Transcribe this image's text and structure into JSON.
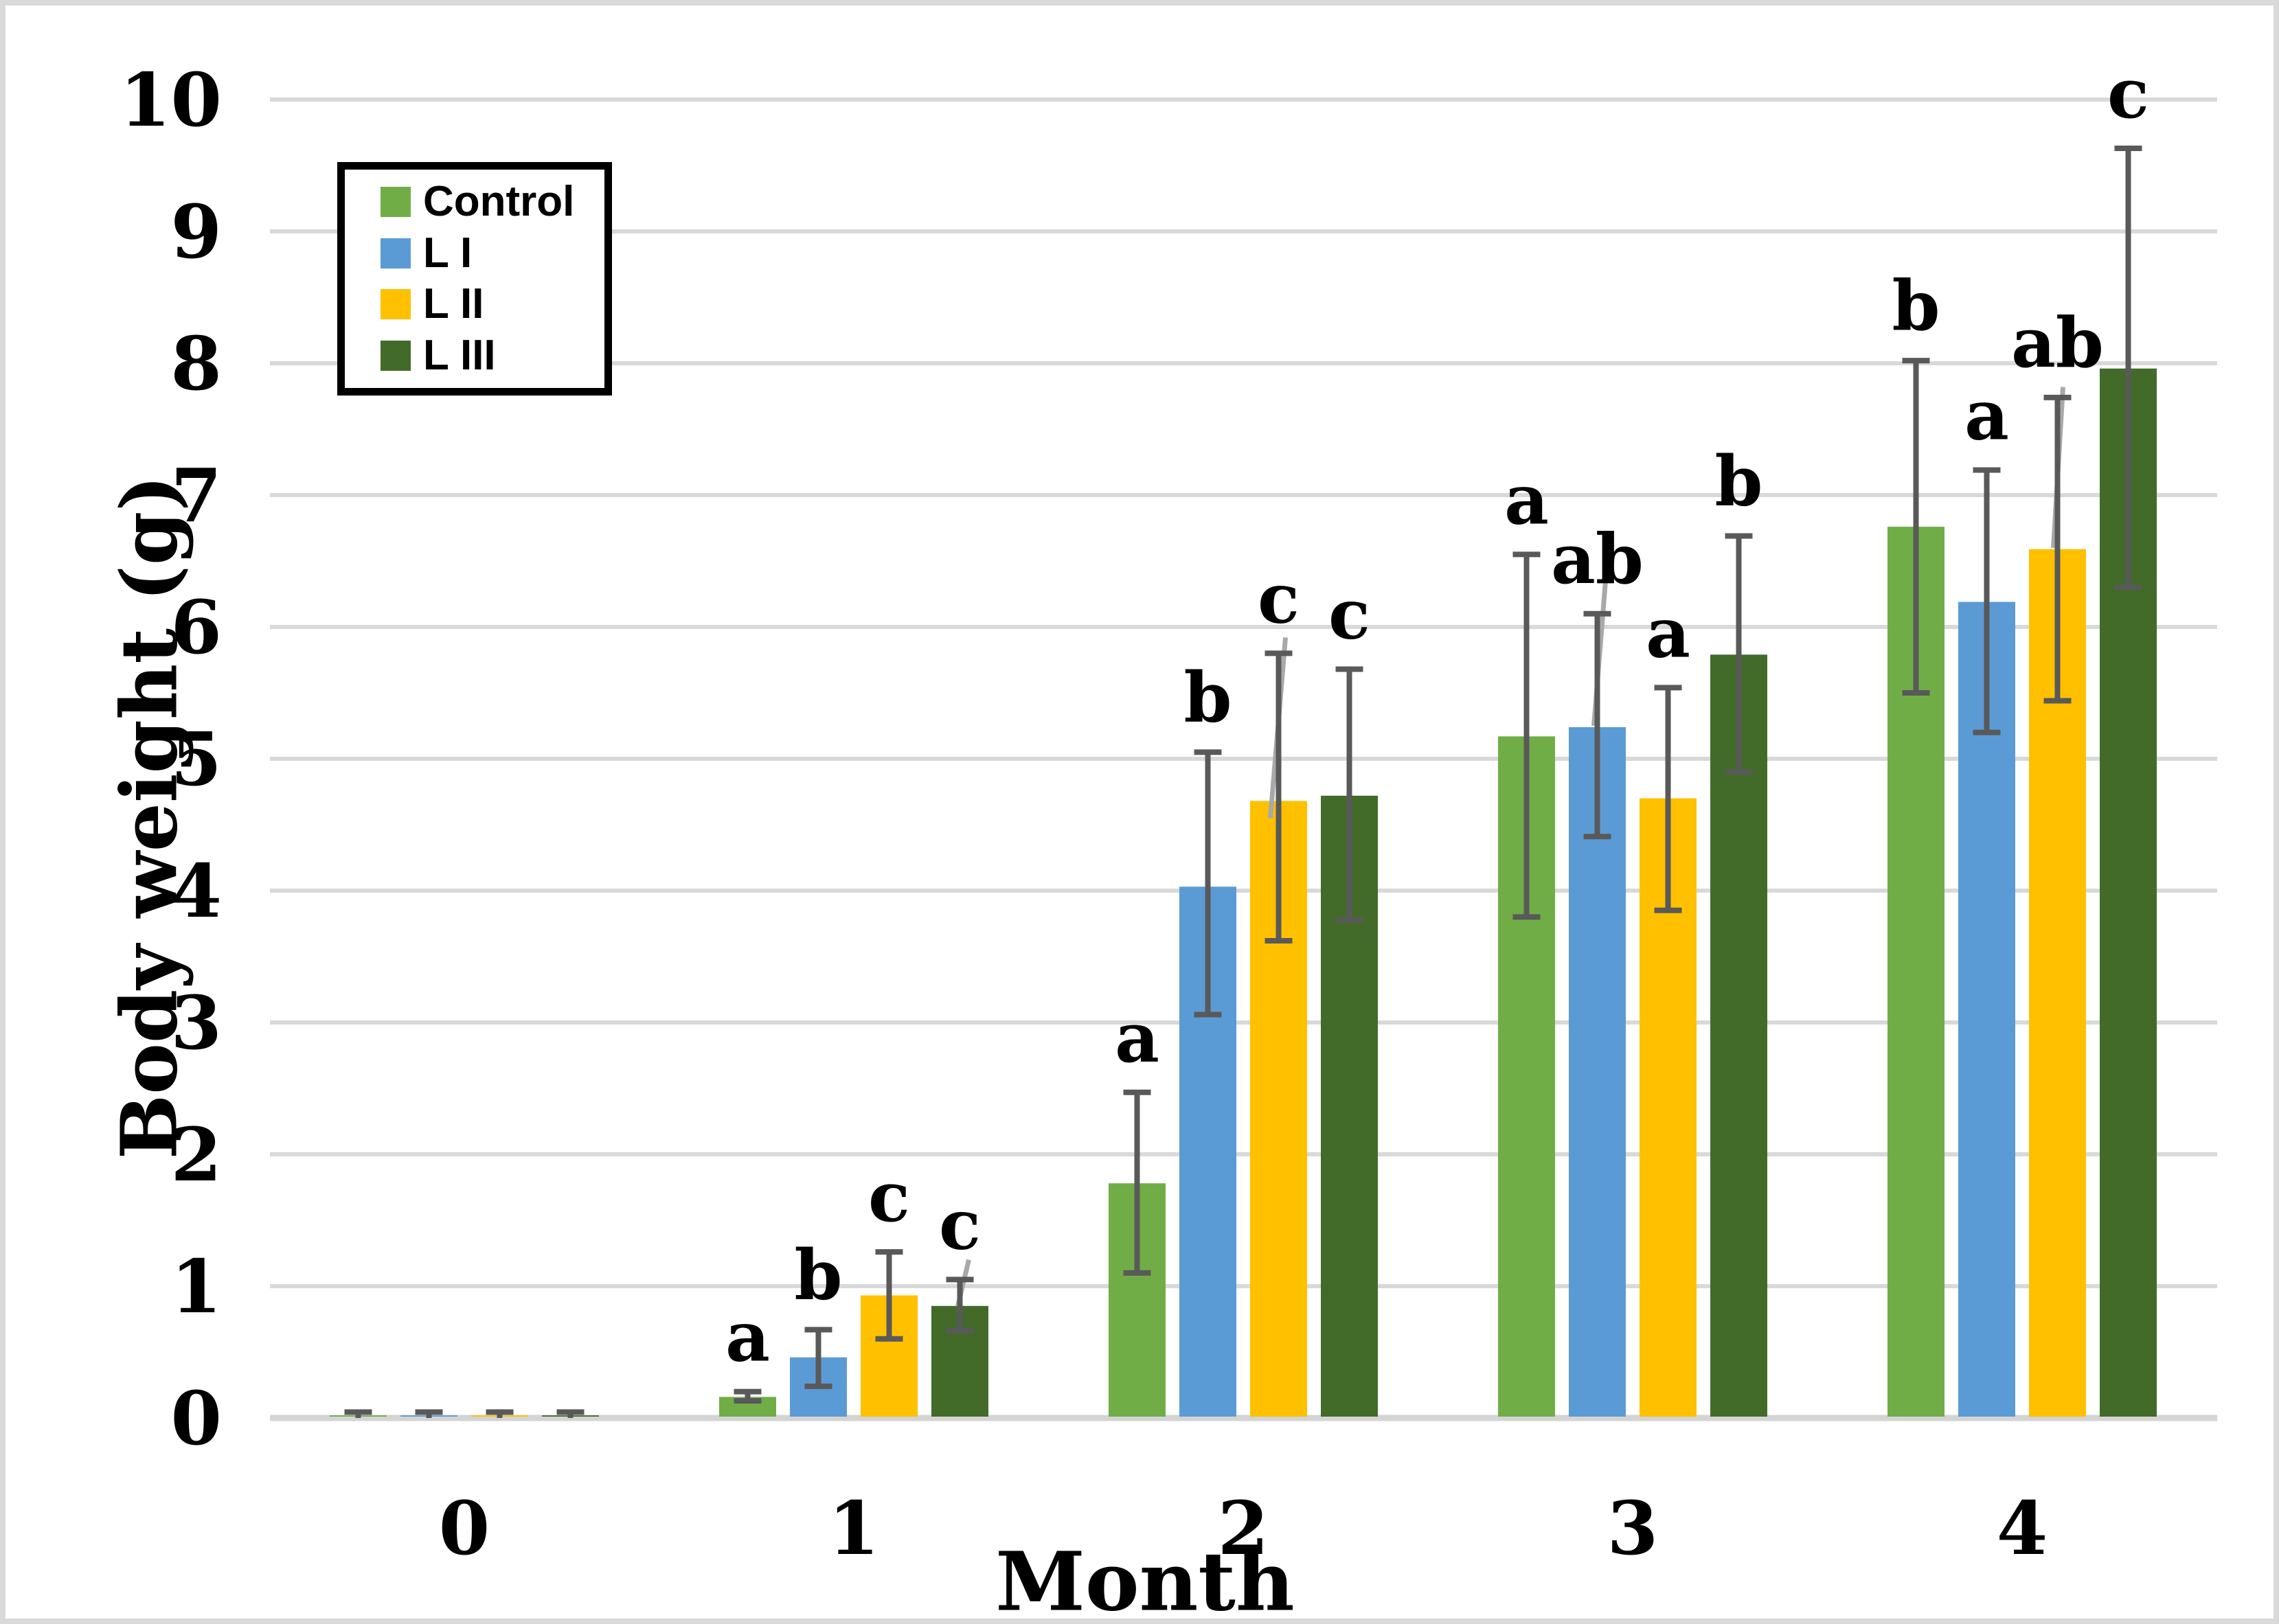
{
  "figure": {
    "background": "#ffffff",
    "border_color": "#d9d9d9"
  },
  "chart_data": {
    "type": "bar",
    "title": "",
    "xlabel": "Month",
    "ylabel": "Body weight (g)",
    "categories": [
      "0",
      "1",
      "2",
      "3",
      "4"
    ],
    "y_tick_labels": [
      "0",
      "1",
      "2",
      "3",
      "4",
      "5",
      "6",
      "7",
      "8",
      "9",
      "10"
    ],
    "ylim": [
      0,
      10
    ],
    "ytick_interval": 1,
    "grid": "horizontal",
    "gridline_color": "#d9d9d9",
    "baseline_color": "#d4d4d4",
    "error_bar_color": "#595959",
    "leader_line_color": "#a9a9a9",
    "legend_position": "top-left-inside",
    "series": [
      {
        "name": "Control",
        "color": "#70AD47",
        "values": [
          0.02,
          0.16,
          1.78,
          5.17,
          6.76
        ],
        "error_low": [
          0.0,
          0.13,
          1.1,
          3.8,
          5.5
        ],
        "error_high": [
          0.045,
          0.2,
          2.47,
          6.55,
          8.02
        ],
        "sig_letters": [
          "",
          "a",
          "a",
          "a",
          "b"
        ]
      },
      {
        "name": "L I",
        "color": "#5B9BD5",
        "values": [
          0.02,
          0.46,
          4.03,
          5.24,
          6.19
        ],
        "error_low": [
          0.0,
          0.24,
          3.06,
          4.41,
          5.2
        ],
        "error_high": [
          0.045,
          0.67,
          5.05,
          6.1,
          7.19
        ],
        "sig_letters": [
          "",
          "b",
          "b",
          "ab",
          "a"
        ]
      },
      {
        "name": "L II",
        "color": "#FFC000",
        "values": [
          0.02,
          0.93,
          4.68,
          4.7,
          6.59
        ],
        "error_low": [
          0.0,
          0.6,
          3.62,
          3.85,
          5.44
        ],
        "error_high": [
          0.045,
          1.26,
          5.8,
          5.54,
          7.74
        ],
        "sig_letters": [
          "",
          "c",
          "c",
          "a",
          "ab"
        ]
      },
      {
        "name": "L III",
        "color": "#426B29",
        "values": [
          0.02,
          0.85,
          4.72,
          5.79,
          7.96
        ],
        "error_low": [
          0.0,
          0.66,
          3.78,
          4.9,
          6.3
        ],
        "error_high": [
          0.045,
          1.05,
          5.68,
          6.69,
          9.63
        ],
        "sig_letters": [
          "",
          "c",
          "c",
          "b",
          "c"
        ]
      }
    ],
    "leader_lines": [
      {
        "series": 3,
        "group": 1,
        "dx1": 13,
        "v1": 1.2,
        "dx2": -3,
        "v2": 0.85
      },
      {
        "series": 2,
        "group": 2,
        "dx1": 10,
        "v1": 5.92,
        "dx2": -12,
        "v2": 4.55
      },
      {
        "series": 1,
        "group": 3,
        "dx1": 12,
        "v1": 6.35,
        "dx2": -5,
        "v2": 5.25
      },
      {
        "series": 2,
        "group": 4,
        "dx1": 8,
        "v1": 7.82,
        "dx2": -6,
        "v2": 6.6
      }
    ]
  }
}
